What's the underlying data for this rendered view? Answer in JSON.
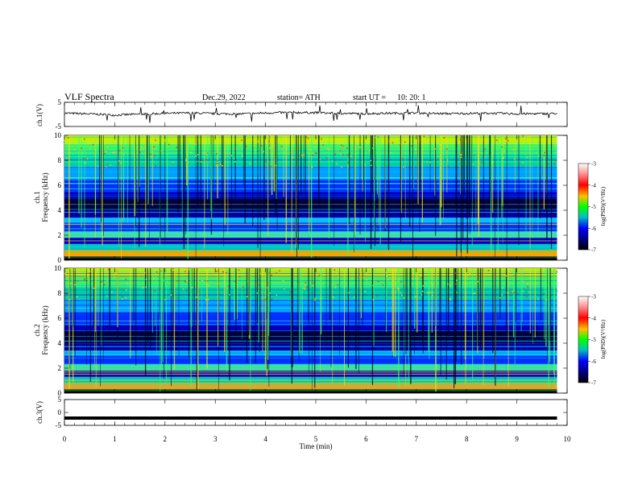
{
  "header": {
    "title": "VLF  Spectra",
    "date": "Dec.29, 2022",
    "station": "station= ATH",
    "start_ut_label": "start  UT  =",
    "start_ut_value": "10: 20: 1"
  },
  "chart_data": [
    {
      "type": "line",
      "panel": "ch1-waveform",
      "ylabel": "ch.1(V)",
      "ylim": [
        -5,
        5
      ],
      "y_ticks": [
        "5",
        "-5"
      ],
      "x": [
        0,
        0.5,
        1,
        1.5,
        2,
        2.5,
        3,
        3.5,
        4,
        4.5,
        5,
        5.5,
        6,
        6.5,
        7,
        7.5,
        8,
        8.5,
        9,
        9.5,
        9.8
      ],
      "y": [
        0.5,
        0.2,
        -0.3,
        0.1,
        0.4,
        0.6,
        0.3,
        0.2,
        0.6,
        0.8,
        0.7,
        0.4,
        0.3,
        0.5,
        0.6,
        0.3,
        0.4,
        0.5,
        0.2,
        0.3,
        0.4
      ],
      "color": "#000000"
    },
    {
      "type": "heatmap",
      "panel": "ch1-spectrogram",
      "ylabel_top": "ch.1",
      "ylabel": "Frequency  (kHz)",
      "ylim": [
        0,
        10
      ],
      "y_ticks": [
        "0",
        "2",
        "4",
        "6",
        "8",
        "10"
      ],
      "colorbar": {
        "label": "log(PSD)(V²/Hz)",
        "range": [
          -7,
          -3
        ],
        "ticks": [
          "-3",
          "-4",
          "-5",
          "-6",
          "-7"
        ]
      }
    },
    {
      "type": "heatmap",
      "panel": "ch2-spectrogram",
      "ylabel_top": "ch.2",
      "ylabel": "Frequency  (kHz)",
      "ylim": [
        0,
        10
      ],
      "y_ticks": [
        "0",
        "2",
        "4",
        "6",
        "8",
        "10"
      ],
      "colorbar": {
        "label": "log(PSD)(V²/Hz)",
        "range": [
          -7,
          -3
        ],
        "ticks": [
          "-3",
          "-4",
          "-5",
          "-6",
          "-7"
        ]
      }
    },
    {
      "type": "line",
      "panel": "ch3-waveform",
      "ylabel": "ch.3(V)",
      "ylim": [
        -5,
        5
      ],
      "y_ticks": [
        "5",
        "0",
        "-5"
      ],
      "x": [
        0,
        9.8
      ],
      "y": [
        -2.2,
        -2.2
      ],
      "color": "#000000"
    }
  ],
  "x_axis": {
    "label": "Time  (min)",
    "xlim": [
      0,
      10
    ],
    "ticks": [
      "0",
      "1",
      "2",
      "3",
      "4",
      "5",
      "6",
      "7",
      "8",
      "9",
      "10"
    ]
  },
  "colors": {
    "spectrogram_low": "#00007f",
    "spectrogram_mid": "#00c0c0",
    "spectrogram_high": "#ff0000",
    "colorbar_top": "#ffffff",
    "colorbar_bottom": "#000000"
  }
}
